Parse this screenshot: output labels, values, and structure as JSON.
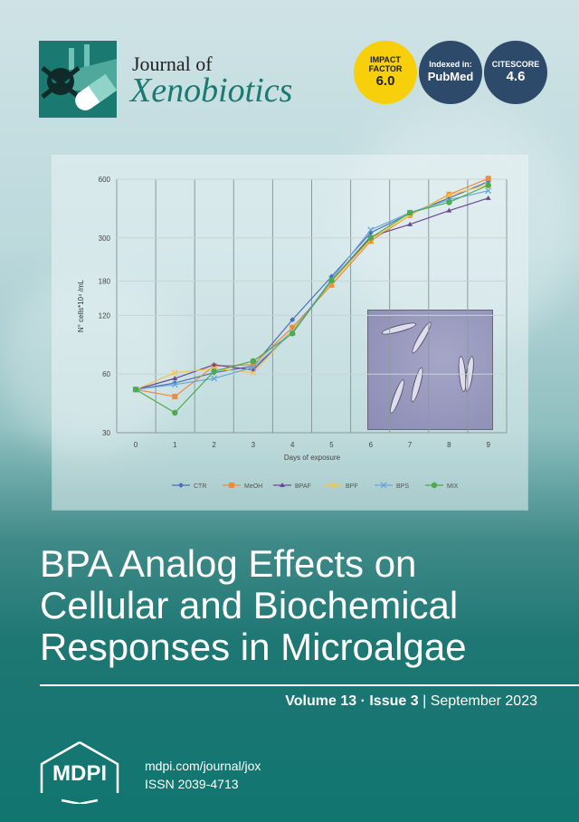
{
  "journal": {
    "prefix": "Journal of",
    "name": "Xenobiotics"
  },
  "badges": [
    {
      "top": "IMPACT FACTOR",
      "value": "6.0"
    },
    {
      "top": "Indexed in:",
      "value": "PubMed"
    },
    {
      "top": "CITESCORE",
      "value": "4.6"
    }
  ],
  "colors": {
    "teal": "#1a7a72",
    "yellow": "#f7cf0a",
    "navy": "#2d4a6b"
  },
  "chart_data": {
    "type": "line",
    "title": "",
    "xlabel": "Days of exposure",
    "ylabel": "N° cells*10⁴ /mL",
    "yscale": "log",
    "ylim": [
      30,
      600
    ],
    "yticks": [
      30,
      60,
      120,
      180,
      300,
      600
    ],
    "x": [
      0,
      1,
      2,
      3,
      4,
      5,
      6,
      7,
      8,
      9
    ],
    "legend_position": "bottom",
    "grid": true,
    "series": [
      {
        "name": "CTR",
        "color": "#4a6fb5",
        "marker": "diamond",
        "values": [
          50,
          54,
          61,
          66,
          114,
          190,
          319,
          400,
          480,
          584
        ]
      },
      {
        "name": "MeOH",
        "color": "#ed8a3c",
        "marker": "square",
        "values": [
          50,
          46,
          66,
          67,
          104,
          172,
          289,
          392,
          501,
          605
        ]
      },
      {
        "name": "BPAF",
        "color": "#6b4a8f",
        "marker": "triangle",
        "values": [
          50,
          57,
          67,
          63,
          100,
          181,
          305,
          352,
          414,
          480
        ]
      },
      {
        "name": "BPF",
        "color": "#f3c54a",
        "marker": "cross",
        "values": [
          50,
          61,
          64,
          61,
          100,
          178,
          295,
          393,
          497,
          563
        ]
      },
      {
        "name": "BPS",
        "color": "#6aa6d8",
        "marker": "x",
        "values": [
          50,
          53,
          57,
          65,
          98,
          184,
          330,
          404,
          470,
          524
        ]
      },
      {
        "name": "MIX",
        "color": "#4daa4d",
        "marker": "circle",
        "values": [
          50,
          38,
          62,
          70,
          97,
          181,
          300,
          404,
          457,
          559
        ]
      }
    ]
  },
  "article_title": [
    "BPA Analog Effects on",
    "Cellular and Biochemical",
    "Responses in Microalgae"
  ],
  "issue": {
    "volume": "Volume 13",
    "sep": "·",
    "issue": "Issue 3",
    "bar": "|",
    "date": "September 2023"
  },
  "publisher": {
    "logo": "MDPI",
    "url": "mdpi.com/journal/jox",
    "issn": "ISSN 2039-4713"
  }
}
